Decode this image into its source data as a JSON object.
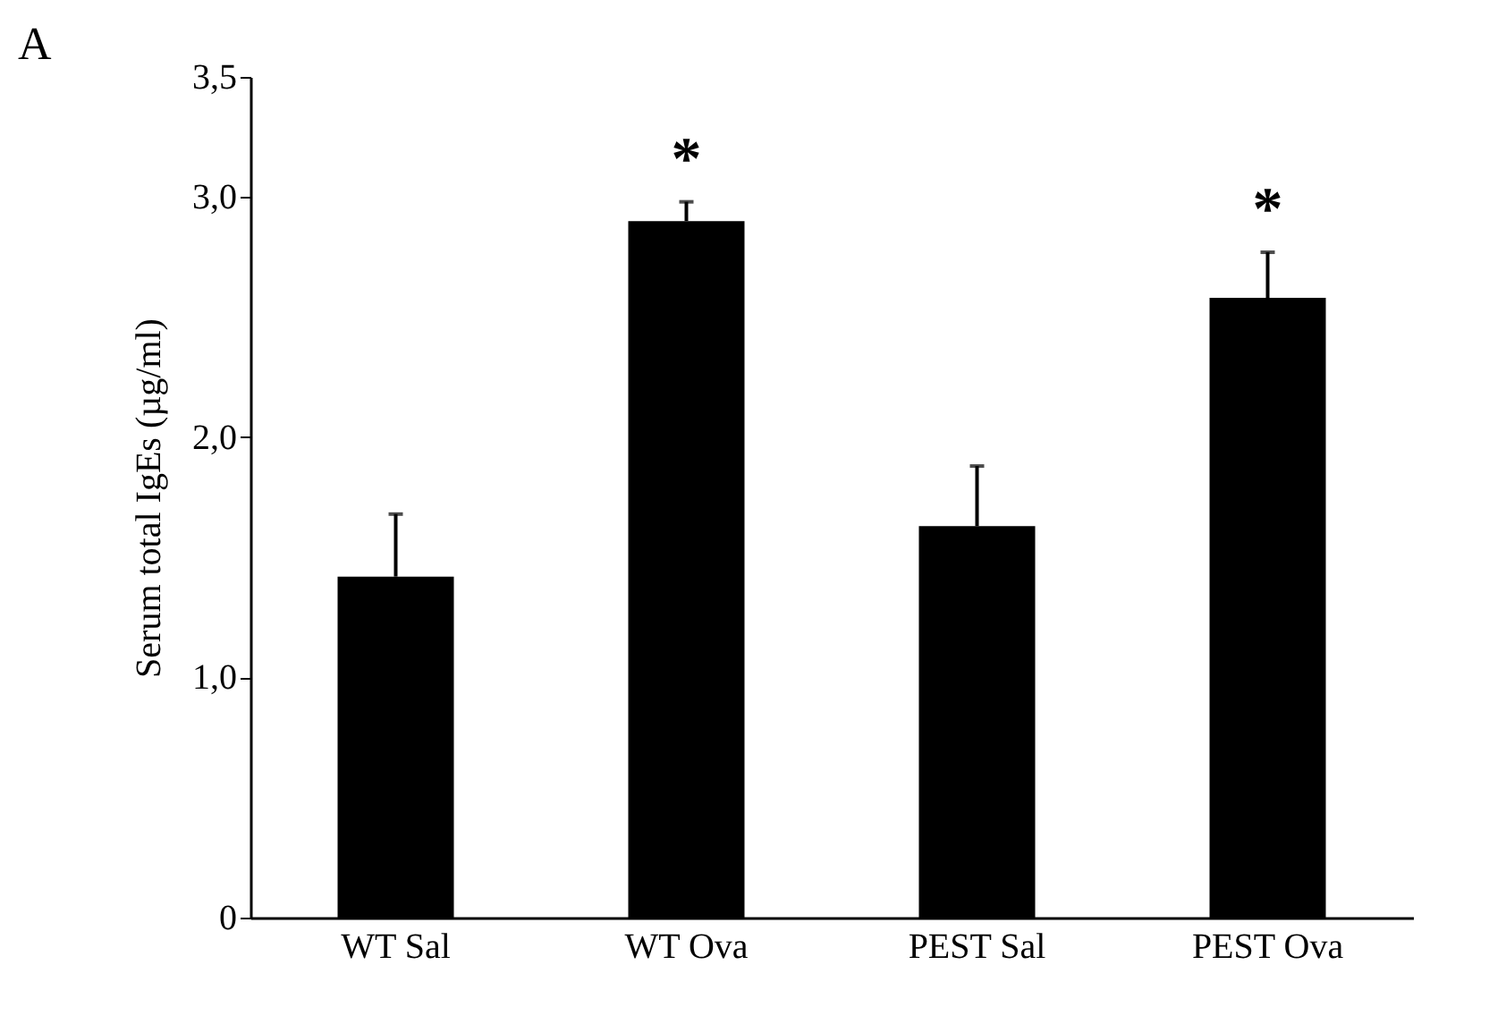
{
  "chart_data": {
    "type": "bar",
    "title": "A",
    "ylabel": "Serum total IgEs (µg/ml)",
    "categories": [
      "WT Sal",
      "WT Ova",
      "PEST Sal",
      "PEST Ova"
    ],
    "values": [
      1.42,
      2.9,
      1.63,
      2.58
    ],
    "errors": [
      [
        1.42,
        1.68
      ],
      [
        2.9,
        2.98
      ],
      [
        1.63,
        1.88
      ],
      [
        2.58,
        2.77
      ]
    ],
    "color": "#000000",
    "ylim": [
      0,
      3.5
    ],
    "yticks": [
      0,
      {
        "value": 1,
        "label": "1,0"
      },
      {
        "value": 2,
        "label": "2,0"
      },
      {
        "value": 3,
        "label": "3,0"
      },
      {
        "value": 3.5,
        "label": "3,5"
      }
    ],
    "grid": false,
    "annotations": [
      {
        "text": "*",
        "x": "WT Ova",
        "y": 2.98
      },
      {
        "text": "*",
        "x": "PEST Ova",
        "y": 2.77
      }
    ]
  }
}
